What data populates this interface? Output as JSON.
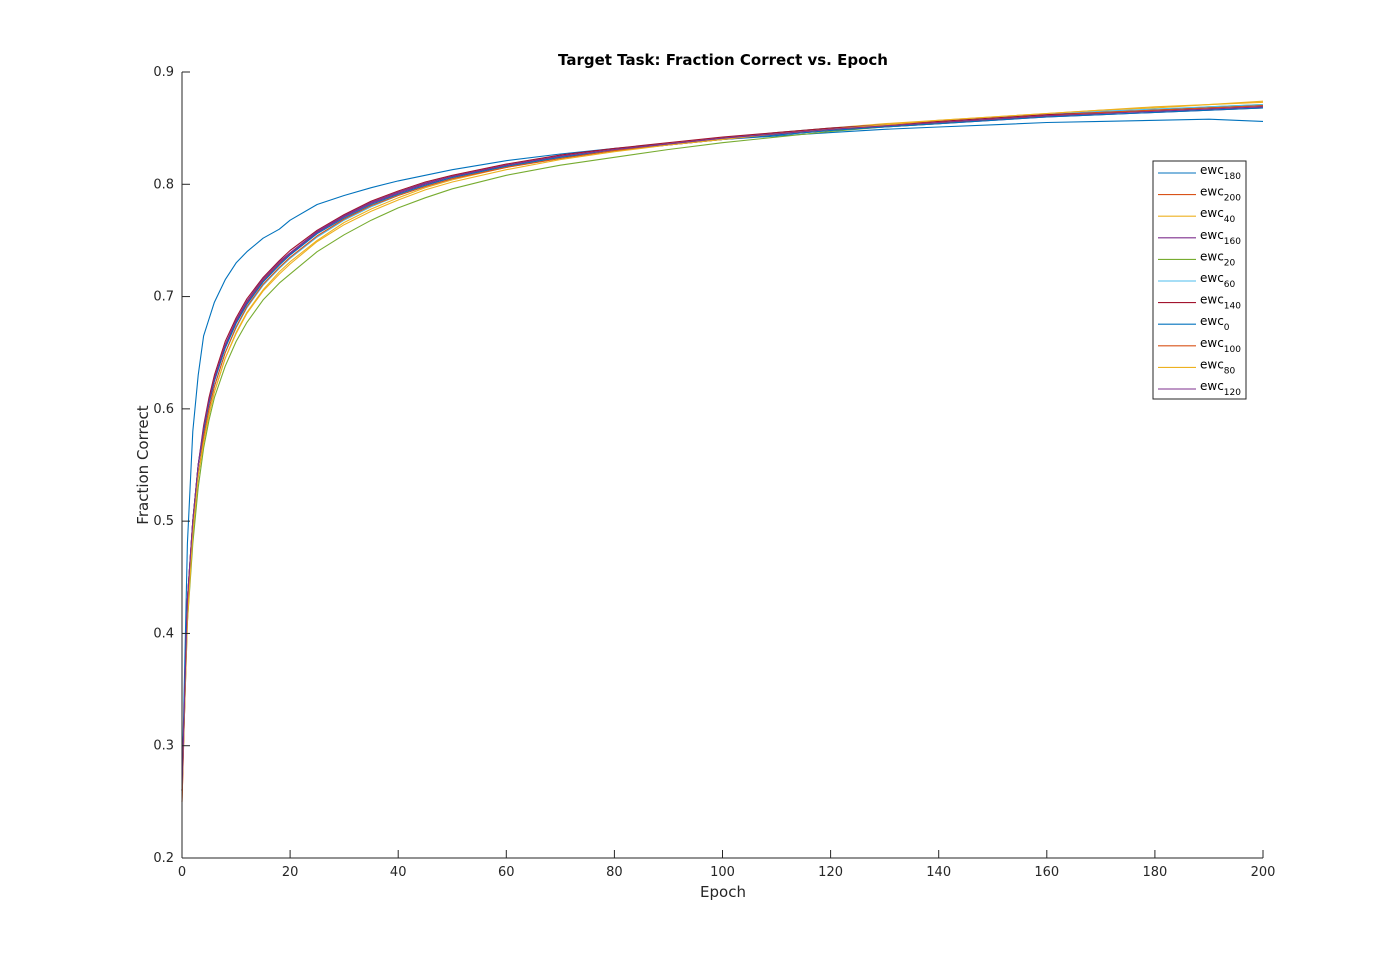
{
  "chart_data": {
    "type": "line",
    "title": "Target Task: Fraction Correct vs. Epoch",
    "xlabel": "Epoch",
    "ylabel": "Fraction Correct",
    "xlim": [
      0,
      200
    ],
    "ylim": [
      0.2,
      0.9
    ],
    "xticks": [
      "0",
      "20",
      "40",
      "60",
      "80",
      "100",
      "120",
      "140",
      "160",
      "180",
      "200"
    ],
    "yticks": [
      "0.2",
      "0.3",
      "0.4",
      "0.5",
      "0.6",
      "0.7",
      "0.8",
      "0.9"
    ],
    "grid": false,
    "legend_position": "top-right",
    "x": [
      0,
      1,
      2,
      3,
      4,
      5,
      6,
      8,
      10,
      12,
      15,
      18,
      20,
      25,
      30,
      35,
      40,
      45,
      50,
      60,
      70,
      80,
      90,
      100,
      110,
      120,
      130,
      140,
      150,
      160,
      170,
      180,
      190,
      200
    ],
    "series": [
      {
        "name": "ewc",
        "sub": "180",
        "color": "#0072BD",
        "values": [
          0.26,
          0.48,
          0.58,
          0.63,
          0.665,
          0.68,
          0.695,
          0.715,
          0.73,
          0.74,
          0.752,
          0.76,
          0.768,
          0.782,
          0.79,
          0.797,
          0.803,
          0.808,
          0.813,
          0.821,
          0.827,
          0.832,
          0.836,
          0.84,
          0.843,
          0.846,
          0.849,
          0.851,
          0.853,
          0.855,
          0.856,
          0.857,
          0.858,
          0.856
        ]
      },
      {
        "name": "ewc",
        "sub": "200",
        "color": "#D95319",
        "values": [
          0.25,
          0.43,
          0.5,
          0.55,
          0.58,
          0.605,
          0.625,
          0.655,
          0.678,
          0.695,
          0.715,
          0.73,
          0.738,
          0.757,
          0.772,
          0.784,
          0.793,
          0.801,
          0.807,
          0.817,
          0.825,
          0.831,
          0.836,
          0.841,
          0.845,
          0.849,
          0.852,
          0.855,
          0.858,
          0.861,
          0.863,
          0.866,
          0.868,
          0.87
        ]
      },
      {
        "name": "ewc",
        "sub": "40",
        "color": "#EDB120",
        "values": [
          0.26,
          0.42,
          0.49,
          0.54,
          0.57,
          0.595,
          0.615,
          0.645,
          0.668,
          0.686,
          0.706,
          0.722,
          0.731,
          0.75,
          0.766,
          0.778,
          0.788,
          0.797,
          0.804,
          0.815,
          0.823,
          0.83,
          0.836,
          0.841,
          0.846,
          0.85,
          0.854,
          0.857,
          0.86,
          0.863,
          0.866,
          0.868,
          0.871,
          0.873
        ]
      },
      {
        "name": "ewc",
        "sub": "160",
        "color": "#7E2F8E",
        "values": [
          0.26,
          0.43,
          0.5,
          0.55,
          0.58,
          0.605,
          0.625,
          0.655,
          0.677,
          0.694,
          0.714,
          0.729,
          0.738,
          0.757,
          0.771,
          0.783,
          0.792,
          0.8,
          0.806,
          0.816,
          0.824,
          0.83,
          0.835,
          0.84,
          0.844,
          0.848,
          0.851,
          0.854,
          0.857,
          0.86,
          0.862,
          0.864,
          0.866,
          0.868
        ]
      },
      {
        "name": "ewc",
        "sub": "20",
        "color": "#77AC30",
        "values": [
          0.26,
          0.41,
          0.48,
          0.53,
          0.565,
          0.59,
          0.61,
          0.638,
          0.66,
          0.677,
          0.697,
          0.712,
          0.72,
          0.74,
          0.755,
          0.768,
          0.779,
          0.788,
          0.796,
          0.808,
          0.817,
          0.824,
          0.831,
          0.837,
          0.842,
          0.847,
          0.851,
          0.854,
          0.858,
          0.861,
          0.864,
          0.866,
          0.869,
          0.871
        ]
      },
      {
        "name": "ewc",
        "sub": "60",
        "color": "#4DBEEE",
        "values": [
          0.26,
          0.42,
          0.49,
          0.54,
          0.575,
          0.6,
          0.62,
          0.65,
          0.672,
          0.69,
          0.71,
          0.725,
          0.734,
          0.753,
          0.768,
          0.78,
          0.79,
          0.798,
          0.805,
          0.816,
          0.824,
          0.831,
          0.836,
          0.841,
          0.846,
          0.85,
          0.853,
          0.856,
          0.859,
          0.862,
          0.865,
          0.867,
          0.869,
          0.871
        ]
      },
      {
        "name": "ewc",
        "sub": "140",
        "color": "#A2142F",
        "values": [
          0.26,
          0.43,
          0.5,
          0.55,
          0.585,
          0.61,
          0.63,
          0.66,
          0.681,
          0.698,
          0.717,
          0.732,
          0.741,
          0.759,
          0.773,
          0.785,
          0.794,
          0.802,
          0.808,
          0.818,
          0.826,
          0.832,
          0.837,
          0.842,
          0.846,
          0.85,
          0.853,
          0.856,
          0.859,
          0.862,
          0.864,
          0.866,
          0.868,
          0.87
        ]
      },
      {
        "name": "ewc",
        "sub": "0",
        "color": "#0072BD",
        "values": [
          0.26,
          0.42,
          0.5,
          0.55,
          0.58,
          0.605,
          0.625,
          0.654,
          0.676,
          0.693,
          0.713,
          0.728,
          0.737,
          0.756,
          0.77,
          0.782,
          0.791,
          0.799,
          0.806,
          0.816,
          0.824,
          0.83,
          0.835,
          0.84,
          0.844,
          0.848,
          0.851,
          0.854,
          0.857,
          0.86,
          0.862,
          0.864,
          0.866,
          0.868
        ]
      },
      {
        "name": "ewc",
        "sub": "100",
        "color": "#D95319",
        "values": [
          0.25,
          0.42,
          0.49,
          0.54,
          0.575,
          0.6,
          0.62,
          0.65,
          0.673,
          0.691,
          0.711,
          0.726,
          0.735,
          0.754,
          0.769,
          0.781,
          0.79,
          0.798,
          0.805,
          0.815,
          0.823,
          0.83,
          0.835,
          0.84,
          0.845,
          0.849,
          0.852,
          0.855,
          0.858,
          0.861,
          0.864,
          0.866,
          0.868,
          0.87
        ]
      },
      {
        "name": "ewc",
        "sub": "80",
        "color": "#EDB120",
        "values": [
          0.26,
          0.41,
          0.49,
          0.54,
          0.57,
          0.595,
          0.615,
          0.645,
          0.667,
          0.685,
          0.705,
          0.72,
          0.729,
          0.749,
          0.764,
          0.776,
          0.786,
          0.795,
          0.802,
          0.813,
          0.822,
          0.829,
          0.835,
          0.84,
          0.845,
          0.849,
          0.853,
          0.857,
          0.86,
          0.863,
          0.866,
          0.869,
          0.871,
          0.874
        ]
      },
      {
        "name": "ewc",
        "sub": "120",
        "color": "#7E2F8E",
        "values": [
          0.26,
          0.43,
          0.5,
          0.55,
          0.583,
          0.607,
          0.627,
          0.657,
          0.679,
          0.696,
          0.716,
          0.731,
          0.739,
          0.758,
          0.772,
          0.784,
          0.793,
          0.801,
          0.807,
          0.817,
          0.825,
          0.831,
          0.836,
          0.841,
          0.845,
          0.849,
          0.852,
          0.855,
          0.858,
          0.861,
          0.863,
          0.865,
          0.867,
          0.869
        ]
      }
    ]
  }
}
